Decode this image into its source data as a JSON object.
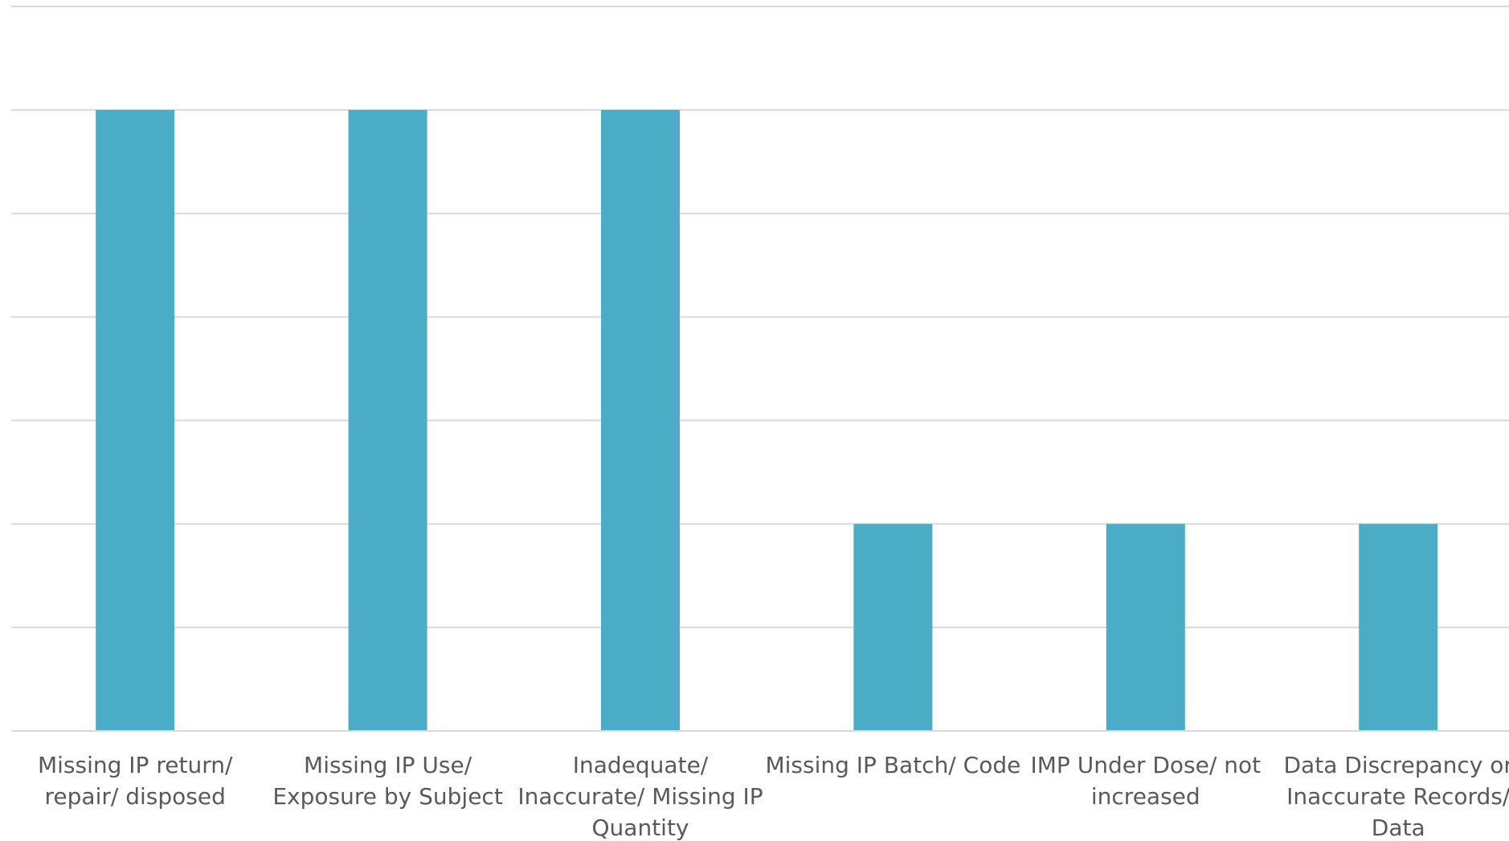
{
  "colors": {
    "bar": "#4aacc5",
    "grid": "#d9d9d9",
    "label": "#595959",
    "background": "#ffffff"
  },
  "chart_data": {
    "type": "bar",
    "title": "",
    "xlabel": "",
    "ylabel": "",
    "categories": [
      "Missing IP return/ repair/ disposed",
      "Missing IP Use/ Exposure by Subject",
      "Inadequate/ Inaccurate/ Missing IP Quantity",
      "Missing IP Batch/ Code",
      "IMP Under Dose/ not increased",
      "Data Discrepancy or Inaccurate Records/ Data"
    ],
    "category_label_lines": [
      [
        "Missing IP return/",
        "repair/ disposed"
      ],
      [
        "Missing IP Use/",
        "Exposure by Subject"
      ],
      [
        "Inadequate/",
        "Inaccurate/ Missing IP",
        "Quantity"
      ],
      [
        "Missing IP Batch/ Code"
      ],
      [
        "IMP Under Dose/ not",
        "increased"
      ],
      [
        "Data Discrepancy or",
        "Inaccurate Records/",
        "Data"
      ]
    ],
    "values": [
      3,
      3,
      3,
      1,
      1,
      1
    ],
    "ylim": [
      0,
      3.5
    ],
    "gridline_step": 0.5,
    "grid": true,
    "legend": "none",
    "tick_labels_shown": false
  }
}
